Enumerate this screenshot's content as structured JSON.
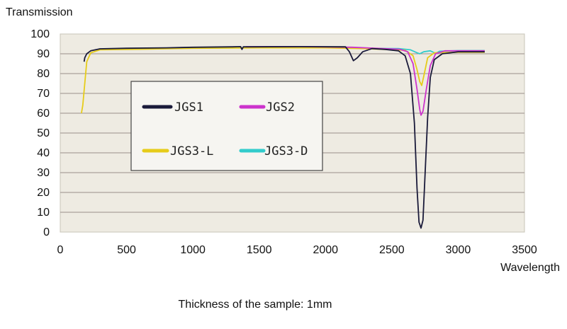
{
  "chart_data": {
    "type": "line",
    "title": "",
    "xlabel": "Wavelength",
    "ylabel": "Transmission",
    "xlim": [
      0,
      3500
    ],
    "ylim": [
      0,
      100
    ],
    "x_ticks": [
      0,
      500,
      1000,
      1500,
      2000,
      2500,
      3000,
      3500
    ],
    "y_ticks": [
      0,
      10,
      20,
      30,
      40,
      50,
      60,
      70,
      80,
      90,
      100
    ],
    "grid": true,
    "legend_position": "center-left",
    "series": [
      {
        "name": "JGS1",
        "color": "#1a1a3a",
        "points": [
          [
            180,
            86
          ],
          [
            185,
            88
          ],
          [
            200,
            90
          ],
          [
            230,
            91.5
          ],
          [
            300,
            92.5
          ],
          [
            500,
            92.8
          ],
          [
            800,
            93
          ],
          [
            1000,
            93.3
          ],
          [
            1300,
            93.5
          ],
          [
            1360,
            93.6
          ],
          [
            1370,
            92.2
          ],
          [
            1380,
            93.5
          ],
          [
            1800,
            93.6
          ],
          [
            2150,
            93.5
          ],
          [
            2180,
            91
          ],
          [
            2210,
            86.5
          ],
          [
            2240,
            88
          ],
          [
            2280,
            91
          ],
          [
            2350,
            92.6
          ],
          [
            2450,
            92.2
          ],
          [
            2550,
            91.5
          ],
          [
            2600,
            89
          ],
          [
            2640,
            80
          ],
          [
            2670,
            55
          ],
          [
            2690,
            22
          ],
          [
            2705,
            5
          ],
          [
            2720,
            2
          ],
          [
            2735,
            6
          ],
          [
            2750,
            28
          ],
          [
            2770,
            58
          ],
          [
            2790,
            78
          ],
          [
            2820,
            87
          ],
          [
            2880,
            90
          ],
          [
            3000,
            91
          ],
          [
            3200,
            91
          ]
        ]
      },
      {
        "name": "JGS2",
        "color": "#cc33cc",
        "points": [
          [
            1400,
            93.5
          ],
          [
            1800,
            93.6
          ],
          [
            2200,
            93.3
          ],
          [
            2400,
            92.7
          ],
          [
            2560,
            92.3
          ],
          [
            2620,
            91
          ],
          [
            2660,
            85
          ],
          [
            2690,
            72
          ],
          [
            2710,
            62
          ],
          [
            2720,
            59
          ],
          [
            2735,
            61
          ],
          [
            2760,
            72
          ],
          [
            2790,
            84
          ],
          [
            2830,
            90
          ],
          [
            2900,
            91.5
          ],
          [
            3200,
            91.5
          ]
        ]
      },
      {
        "name": "JGS3-L",
        "color": "#e6cc1a",
        "points": [
          [
            160,
            60
          ],
          [
            170,
            64
          ],
          [
            185,
            75
          ],
          [
            200,
            86
          ],
          [
            230,
            90.5
          ],
          [
            300,
            92
          ],
          [
            600,
            92.3
          ],
          [
            1000,
            92.8
          ],
          [
            1500,
            93
          ],
          [
            2000,
            93
          ],
          [
            2300,
            92.6
          ],
          [
            2600,
            91.8
          ],
          [
            2660,
            89
          ],
          [
            2690,
            82
          ],
          [
            2710,
            76
          ],
          [
            2725,
            74
          ],
          [
            2745,
            80
          ],
          [
            2770,
            88
          ],
          [
            2820,
            90.5
          ],
          [
            3000,
            90.8
          ],
          [
            3200,
            90.8
          ]
        ]
      },
      {
        "name": "JGS3-D",
        "color": "#33cccc",
        "points": [
          [
            1000,
            92.9
          ],
          [
            1500,
            93
          ],
          [
            2000,
            93.2
          ],
          [
            2300,
            92.7
          ],
          [
            2550,
            92.6
          ],
          [
            2640,
            92
          ],
          [
            2690,
            90.5
          ],
          [
            2710,
            90
          ],
          [
            2740,
            91
          ],
          [
            2790,
            91.5
          ],
          [
            2830,
            90.2
          ],
          [
            2860,
            91.3
          ],
          [
            3000,
            91.6
          ],
          [
            3200,
            91.6
          ]
        ]
      }
    ],
    "annotations": [
      "Thickness of the sample: 1mm"
    ]
  }
}
